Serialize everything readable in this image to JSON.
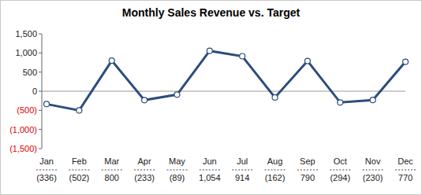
{
  "chart_data": {
    "type": "line",
    "title": "Monthly Sales Revenue vs. Target",
    "categories": [
      "Jan",
      "Feb",
      "Mar",
      "Apr",
      "May",
      "Jun",
      "Jul",
      "Aug",
      "Sep",
      "Oct",
      "Nov",
      "Dec"
    ],
    "values": [
      -336,
      -502,
      800,
      -233,
      -89,
      1054,
      914,
      -162,
      790,
      -294,
      -230,
      770
    ],
    "value_labels": [
      "(336)",
      "(502)",
      "800",
      "(233)",
      "(89)",
      "1,054",
      "914",
      "(162)",
      "790",
      "(294)",
      "(230)",
      "770"
    ],
    "color": "#2c4d7c",
    "marker": "circle",
    "ylim": [
      -1500,
      1500
    ],
    "yticks": [
      {
        "value": -1500,
        "label": "(1,500)"
      },
      {
        "value": -1000,
        "label": "(1,000)"
      },
      {
        "value": -500,
        "label": "(500)"
      },
      0,
      500,
      {
        "value": 1000,
        "label": "1,000"
      },
      {
        "value": 1500,
        "label": "1,500"
      }
    ],
    "grid": false
  }
}
